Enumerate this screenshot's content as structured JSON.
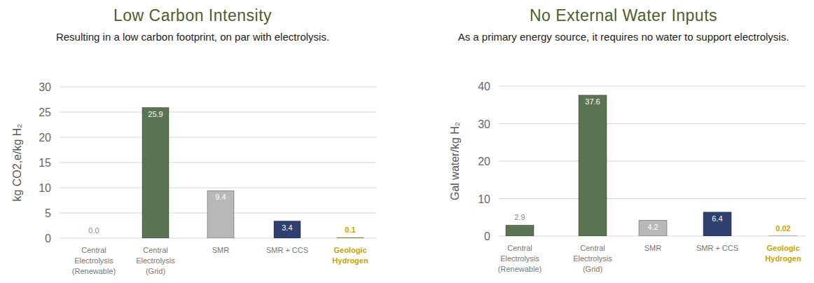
{
  "chart_data": [
    {
      "type": "bar",
      "title": "Low Carbon Intensity",
      "subtitle": "Resulting in a low carbon footprint, on par with electrolysis.",
      "y_label": "kg CO2,e/kg H₂",
      "categories": [
        "Central Electrolysis (Renewable)",
        "Central Electrolysis (Grid)",
        "SMR",
        "SMR + CCS",
        "Geologic Hydrogen"
      ],
      "values": [
        0.0,
        25.9,
        9.4,
        3.4,
        0.1
      ],
      "value_labels": [
        "0.0",
        "25.9",
        "9.4",
        "3.4",
        "0.1"
      ],
      "colors": [
        "#5b7453",
        "#5b7453",
        "#b8b8b8",
        "#2f4170",
        "#c9a300"
      ],
      "ylim": [
        0,
        30
      ],
      "yticks": [
        0,
        5,
        10,
        15,
        20,
        25,
        30
      ],
      "grid": true,
      "data_labels": true
    },
    {
      "type": "bar",
      "title": "No External Water Inputs",
      "subtitle": "As a primary energy source, it requires no water to support electrolysis.",
      "y_label": "Gal water/kg H₂",
      "categories": [
        "Central Electrolysis (Renewable)",
        "Central Electrolysis (Grid)",
        "SMR",
        "SMR + CCS",
        "Geologic Hydrogen"
      ],
      "values": [
        2.9,
        37.6,
        4.2,
        6.4,
        0.02
      ],
      "colors": [
        "#5b7453",
        "#5b7453",
        "#b8b8b8",
        "#2f4170",
        "#c9a300"
      ],
      "ylim": [
        0,
        40
      ],
      "yticks": [
        0,
        10,
        20,
        30,
        40
      ],
      "grid": true,
      "data_labels": true
    }
  ]
}
